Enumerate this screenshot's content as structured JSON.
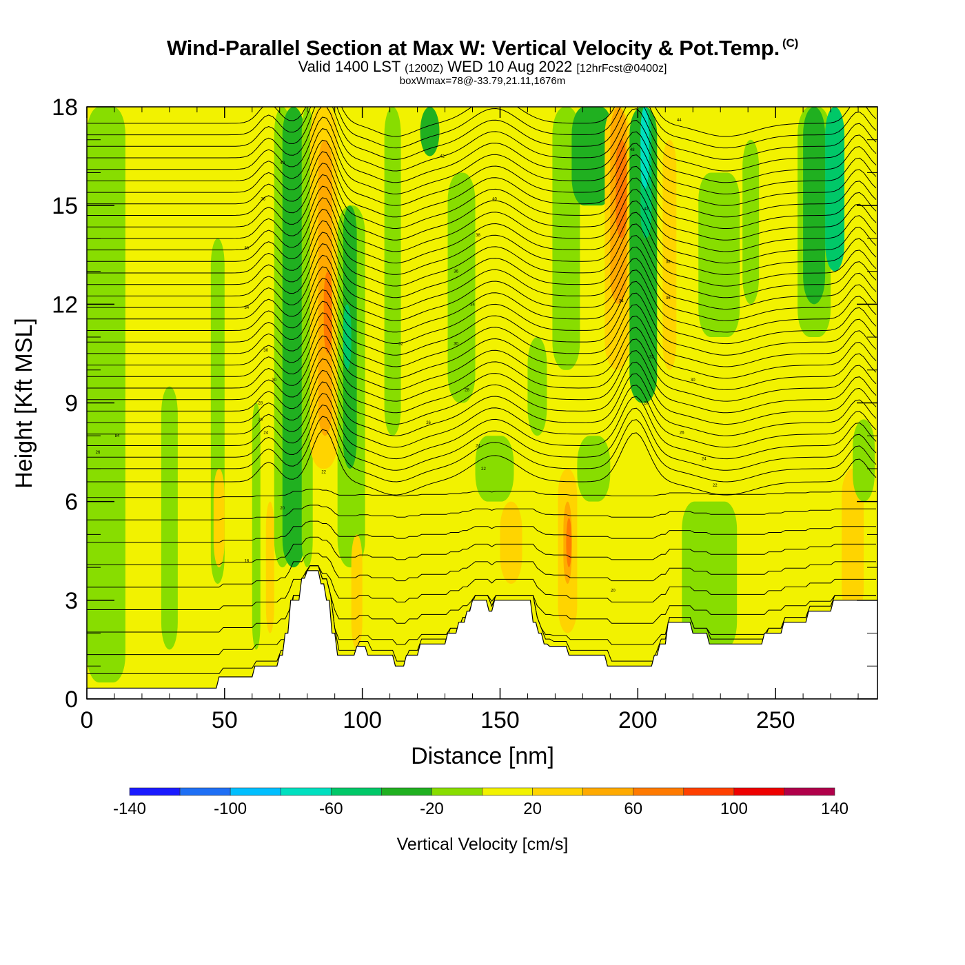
{
  "header": {
    "title": "Wind-Parallel Section at Max W: Vertical Velocity & Pot.Temp.",
    "copyright_mark": "(C)",
    "subtitle_a": "Valid 1400 LST",
    "subtitle_b": "(1200Z)",
    "subtitle_c": "WED 10 Aug 2022",
    "subtitle_d": "[12hrFcst@0400z]",
    "box_info": "boxWmax=78@-33.79,21.11,1676m"
  },
  "chart_data": {
    "type": "heatmap",
    "title": "Wind-Parallel Section at Max W: Vertical Velocity & Pot.Temp.",
    "xlabel": "Distance [nm]",
    "ylabel": "Height [Kft MSL]",
    "xlim": [
      0,
      287
    ],
    "ylim": [
      0,
      18
    ],
    "x_ticks": [
      0,
      50,
      100,
      150,
      200,
      250
    ],
    "y_ticks": [
      0,
      3,
      6,
      9,
      12,
      15,
      18
    ],
    "colorbar": {
      "label": "Vertical Velocity [cm/s]",
      "bounds": [
        -140,
        -120,
        -100,
        -80,
        -60,
        -40,
        -20,
        0,
        20,
        40,
        60,
        80,
        100,
        120,
        140
      ],
      "tick_labels": [
        -140,
        -100,
        -60,
        -20,
        20,
        60,
        100,
        140
      ],
      "colors": [
        "#1a1aff",
        "#1e6ff5",
        "#00bfff",
        "#00e0c0",
        "#00c868",
        "#20b020",
        "#88dd00",
        "#f2f200",
        "#ffd400",
        "#ffaa00",
        "#ff7a00",
        "#ff4000",
        "#ee0000",
        "#b0004a"
      ]
    },
    "background_velocity_cm_s": 10,
    "velocity_bands": [
      {
        "x0": 0,
        "x1": 14,
        "z0": 0.5,
        "z1": 18,
        "w": -10
      },
      {
        "x0": 14,
        "x1": 46,
        "z0": 5,
        "z1": 18,
        "w": 10
      },
      {
        "x0": 27,
        "x1": 33,
        "z0": 1.5,
        "z1": 9.5,
        "w": -10
      },
      {
        "x0": 45,
        "x1": 50,
        "z0": 3.5,
        "z1": 14,
        "w": -10
      },
      {
        "x0": 46,
        "x1": 50,
        "z0": 4,
        "z1": 7,
        "w": 30
      },
      {
        "x0": 60,
        "x1": 63,
        "z0": 1.5,
        "z1": 9,
        "w": -10
      },
      {
        "x0": 65,
        "x1": 68,
        "z0": 2,
        "z1": 6,
        "w": 30
      },
      {
        "x0": 68,
        "x1": 74,
        "z0": 4,
        "z1": 18,
        "w": -10
      },
      {
        "x0": 71,
        "x1": 79,
        "z0": 4,
        "z1": 18,
        "w": -30
      },
      {
        "x0": 78,
        "x1": 82,
        "z0": 4,
        "z1": 18,
        "w": -10
      },
      {
        "x0": 81,
        "x1": 91,
        "z0": 7,
        "z1": 18,
        "w": 30
      },
      {
        "x0": 84,
        "x1": 89,
        "z0": 8,
        "z1": 17,
        "w": 50
      },
      {
        "x0": 86,
        "x1": 89,
        "z0": 10.5,
        "z1": 13,
        "w": 70
      },
      {
        "x0": 91,
        "x1": 101,
        "z0": 4,
        "z1": 15,
        "w": -10
      },
      {
        "x0": 93,
        "x1": 98,
        "z0": 7,
        "z1": 15,
        "w": -30
      },
      {
        "x0": 93,
        "x1": 96,
        "z0": 10,
        "z1": 12,
        "w": -50
      },
      {
        "x0": 96,
        "x1": 100,
        "z0": 1.5,
        "z1": 5,
        "w": 30
      },
      {
        "x0": 108,
        "x1": 114,
        "z0": 8,
        "z1": 18,
        "w": -10
      },
      {
        "x0": 121,
        "x1": 128,
        "z0": 16.5,
        "z1": 18,
        "w": -30
      },
      {
        "x0": 131,
        "x1": 141,
        "z0": 9,
        "z1": 16,
        "w": -10
      },
      {
        "x0": 141,
        "x1": 155,
        "z0": 6,
        "z1": 8,
        "w": -10
      },
      {
        "x0": 150,
        "x1": 158,
        "z0": 3.5,
        "z1": 6,
        "w": 30
      },
      {
        "x0": 160,
        "x1": 167,
        "z0": 8,
        "z1": 11,
        "w": -10
      },
      {
        "x0": 169,
        "x1": 179,
        "z0": 10,
        "z1": 18,
        "w": -10
      },
      {
        "x0": 171,
        "x1": 178,
        "z0": 2,
        "z1": 7,
        "w": 30
      },
      {
        "x0": 173,
        "x1": 176,
        "z0": 3.5,
        "z1": 6,
        "w": 50
      },
      {
        "x0": 174,
        "x1": 176,
        "z0": 4,
        "z1": 5.5,
        "w": 70
      },
      {
        "x0": 176,
        "x1": 191,
        "z0": 15,
        "z1": 18,
        "w": -30
      },
      {
        "x0": 178,
        "x1": 190,
        "z0": 6,
        "z1": 8,
        "w": -10
      },
      {
        "x0": 188,
        "x1": 197,
        "z0": 10,
        "z1": 18,
        "w": 30
      },
      {
        "x0": 190,
        "x1": 196,
        "z0": 12,
        "z1": 18,
        "w": 50
      },
      {
        "x0": 192,
        "x1": 196,
        "z0": 14,
        "z1": 17,
        "w": 70
      },
      {
        "x0": 197,
        "x1": 207,
        "z0": 9,
        "z1": 18,
        "w": -30
      },
      {
        "x0": 201,
        "x1": 205,
        "z0": 14,
        "z1": 18,
        "w": -50
      },
      {
        "x0": 201,
        "x1": 204,
        "z0": 15.5,
        "z1": 18,
        "w": -70
      },
      {
        "x0": 209,
        "x1": 214,
        "z0": 10,
        "z1": 17,
        "w": 30
      },
      {
        "x0": 216,
        "x1": 236,
        "z0": 1.5,
        "z1": 6,
        "w": -10
      },
      {
        "x0": 222,
        "x1": 237,
        "z0": 11,
        "z1": 16,
        "w": -10
      },
      {
        "x0": 238,
        "x1": 244,
        "z0": 12,
        "z1": 17,
        "w": -10
      },
      {
        "x0": 258,
        "x1": 270,
        "z0": 11,
        "z1": 18,
        "w": -10
      },
      {
        "x0": 260,
        "x1": 268,
        "z0": 12,
        "z1": 18,
        "w": -30
      },
      {
        "x0": 268,
        "x1": 275,
        "z0": 13,
        "z1": 18,
        "w": -50
      },
      {
        "x0": 274,
        "x1": 282,
        "z0": 2.5,
        "z1": 7,
        "w": 30
      },
      {
        "x0": 278,
        "x1": 286,
        "z0": 6,
        "z1": 8.5,
        "w": -10
      }
    ],
    "terrain_kft": [
      [
        0,
        0.33
      ],
      [
        47,
        0.33
      ],
      [
        48,
        0.67
      ],
      [
        60,
        0.67
      ],
      [
        61,
        1.0
      ],
      [
        69,
        1.0
      ],
      [
        70,
        1.33
      ],
      [
        71,
        1.33
      ],
      [
        72,
        2.0
      ],
      [
        73,
        2.0
      ],
      [
        74,
        3.0
      ],
      [
        77,
        3.0
      ],
      [
        78,
        3.67
      ],
      [
        79,
        3.67
      ],
      [
        80,
        3.9
      ],
      [
        84,
        3.9
      ],
      [
        85,
        3.5
      ],
      [
        86,
        3.5
      ],
      [
        87,
        3.0
      ],
      [
        88,
        3.0
      ],
      [
        89,
        2.0
      ],
      [
        90,
        2.0
      ],
      [
        91,
        1.33
      ],
      [
        97,
        1.33
      ],
      [
        98,
        1.6
      ],
      [
        101,
        1.6
      ],
      [
        102,
        1.33
      ],
      [
        111,
        1.33
      ],
      [
        112,
        1.0
      ],
      [
        115,
        1.0
      ],
      [
        116,
        1.33
      ],
      [
        120,
        1.33
      ],
      [
        121,
        1.67
      ],
      [
        130,
        1.67
      ],
      [
        131,
        2.0
      ],
      [
        134,
        2.0
      ],
      [
        135,
        2.33
      ],
      [
        137,
        2.33
      ],
      [
        138,
        2.67
      ],
      [
        139,
        2.67
      ],
      [
        140,
        3.0
      ],
      [
        145,
        3.0
      ],
      [
        146,
        2.67
      ],
      [
        147,
        2.67
      ],
      [
        148,
        3.0
      ],
      [
        161,
        3.0
      ],
      [
        162,
        2.33
      ],
      [
        163,
        2.33
      ],
      [
        164,
        2.0
      ],
      [
        165,
        2.0
      ],
      [
        166,
        1.67
      ],
      [
        167,
        1.67
      ],
      [
        168,
        1.6
      ],
      [
        174,
        1.6
      ],
      [
        175,
        1.33
      ],
      [
        188,
        1.33
      ],
      [
        189,
        1.0
      ],
      [
        205,
        1.0
      ],
      [
        206,
        1.33
      ],
      [
        207,
        1.33
      ],
      [
        208,
        1.67
      ],
      [
        210,
        1.67
      ],
      [
        211,
        2.33
      ],
      [
        219,
        2.33
      ],
      [
        220,
        2.0
      ],
      [
        225,
        2.0
      ],
      [
        226,
        1.67
      ],
      [
        245,
        1.67
      ],
      [
        246,
        2.0
      ],
      [
        252,
        2.0
      ],
      [
        253,
        2.33
      ],
      [
        261,
        2.33
      ],
      [
        262,
        2.67
      ],
      [
        270,
        2.67
      ],
      [
        271,
        3.0
      ],
      [
        287,
        3.0
      ]
    ],
    "isentrope_levels_kft": [
      0.6,
      1.2,
      1.9,
      2.6,
      3.3,
      4.0,
      4.7,
      5.4,
      6.1,
      6.6,
      7.0,
      7.35,
      7.7,
      8.05,
      8.4,
      8.75,
      9.1,
      9.45,
      9.8,
      10.15,
      10.5,
      10.85,
      11.2,
      11.55,
      11.9,
      12.25,
      12.6,
      12.95,
      13.3,
      13.65,
      14.0,
      14.35,
      14.7,
      15.05,
      15.4,
      15.75,
      16.1,
      16.45,
      16.8,
      17.15,
      17.5
    ],
    "contour_labels": [
      {
        "x": 4,
        "z": 7.5,
        "text": "26"
      },
      {
        "x": 11,
        "z": 8.0,
        "text": "84"
      },
      {
        "x": 58,
        "z": 13.7,
        "text": "36"
      },
      {
        "x": 58,
        "z": 11.9,
        "text": "34"
      },
      {
        "x": 64,
        "z": 15.2,
        "text": "36"
      },
      {
        "x": 65,
        "z": 10.6,
        "text": "30"
      },
      {
        "x": 68,
        "z": 9.7,
        "text": "30"
      },
      {
        "x": 63,
        "z": 9.0,
        "text": "28"
      },
      {
        "x": 63,
        "z": 8.5,
        "text": "26"
      },
      {
        "x": 65,
        "z": 8.1,
        "text": "24"
      },
      {
        "x": 71,
        "z": 16.3,
        "text": "40"
      },
      {
        "x": 58,
        "z": 4.2,
        "text": "18"
      },
      {
        "x": 71,
        "z": 5.8,
        "text": "20"
      },
      {
        "x": 86,
        "z": 6.9,
        "text": "22"
      },
      {
        "x": 129,
        "z": 16.5,
        "text": "42"
      },
      {
        "x": 148,
        "z": 15.2,
        "text": "40"
      },
      {
        "x": 142,
        "z": 14.1,
        "text": "38"
      },
      {
        "x": 134,
        "z": 13.0,
        "text": "36"
      },
      {
        "x": 140,
        "z": 12.0,
        "text": "34"
      },
      {
        "x": 114,
        "z": 10.8,
        "text": "32"
      },
      {
        "x": 134,
        "z": 10.8,
        "text": "30"
      },
      {
        "x": 138,
        "z": 9.4,
        "text": "28"
      },
      {
        "x": 124,
        "z": 8.4,
        "text": "26"
      },
      {
        "x": 142,
        "z": 7.7,
        "text": "24"
      },
      {
        "x": 144,
        "z": 7.0,
        "text": "22"
      },
      {
        "x": 198,
        "z": 16.7,
        "text": "48"
      },
      {
        "x": 215,
        "z": 17.6,
        "text": "44"
      },
      {
        "x": 203,
        "z": 14.9,
        "text": "42"
      },
      {
        "x": 211,
        "z": 13.3,
        "text": "38"
      },
      {
        "x": 211,
        "z": 12.2,
        "text": "36"
      },
      {
        "x": 194,
        "z": 12.1,
        "text": "34"
      },
      {
        "x": 205,
        "z": 10.4,
        "text": "32"
      },
      {
        "x": 220,
        "z": 9.7,
        "text": "30"
      },
      {
        "x": 203,
        "z": 9.0,
        "text": "28"
      },
      {
        "x": 216,
        "z": 8.1,
        "text": "26"
      },
      {
        "x": 224,
        "z": 7.3,
        "text": "24"
      },
      {
        "x": 228,
        "z": 6.5,
        "text": "22"
      },
      {
        "x": 191,
        "z": 3.3,
        "text": "20"
      }
    ]
  }
}
